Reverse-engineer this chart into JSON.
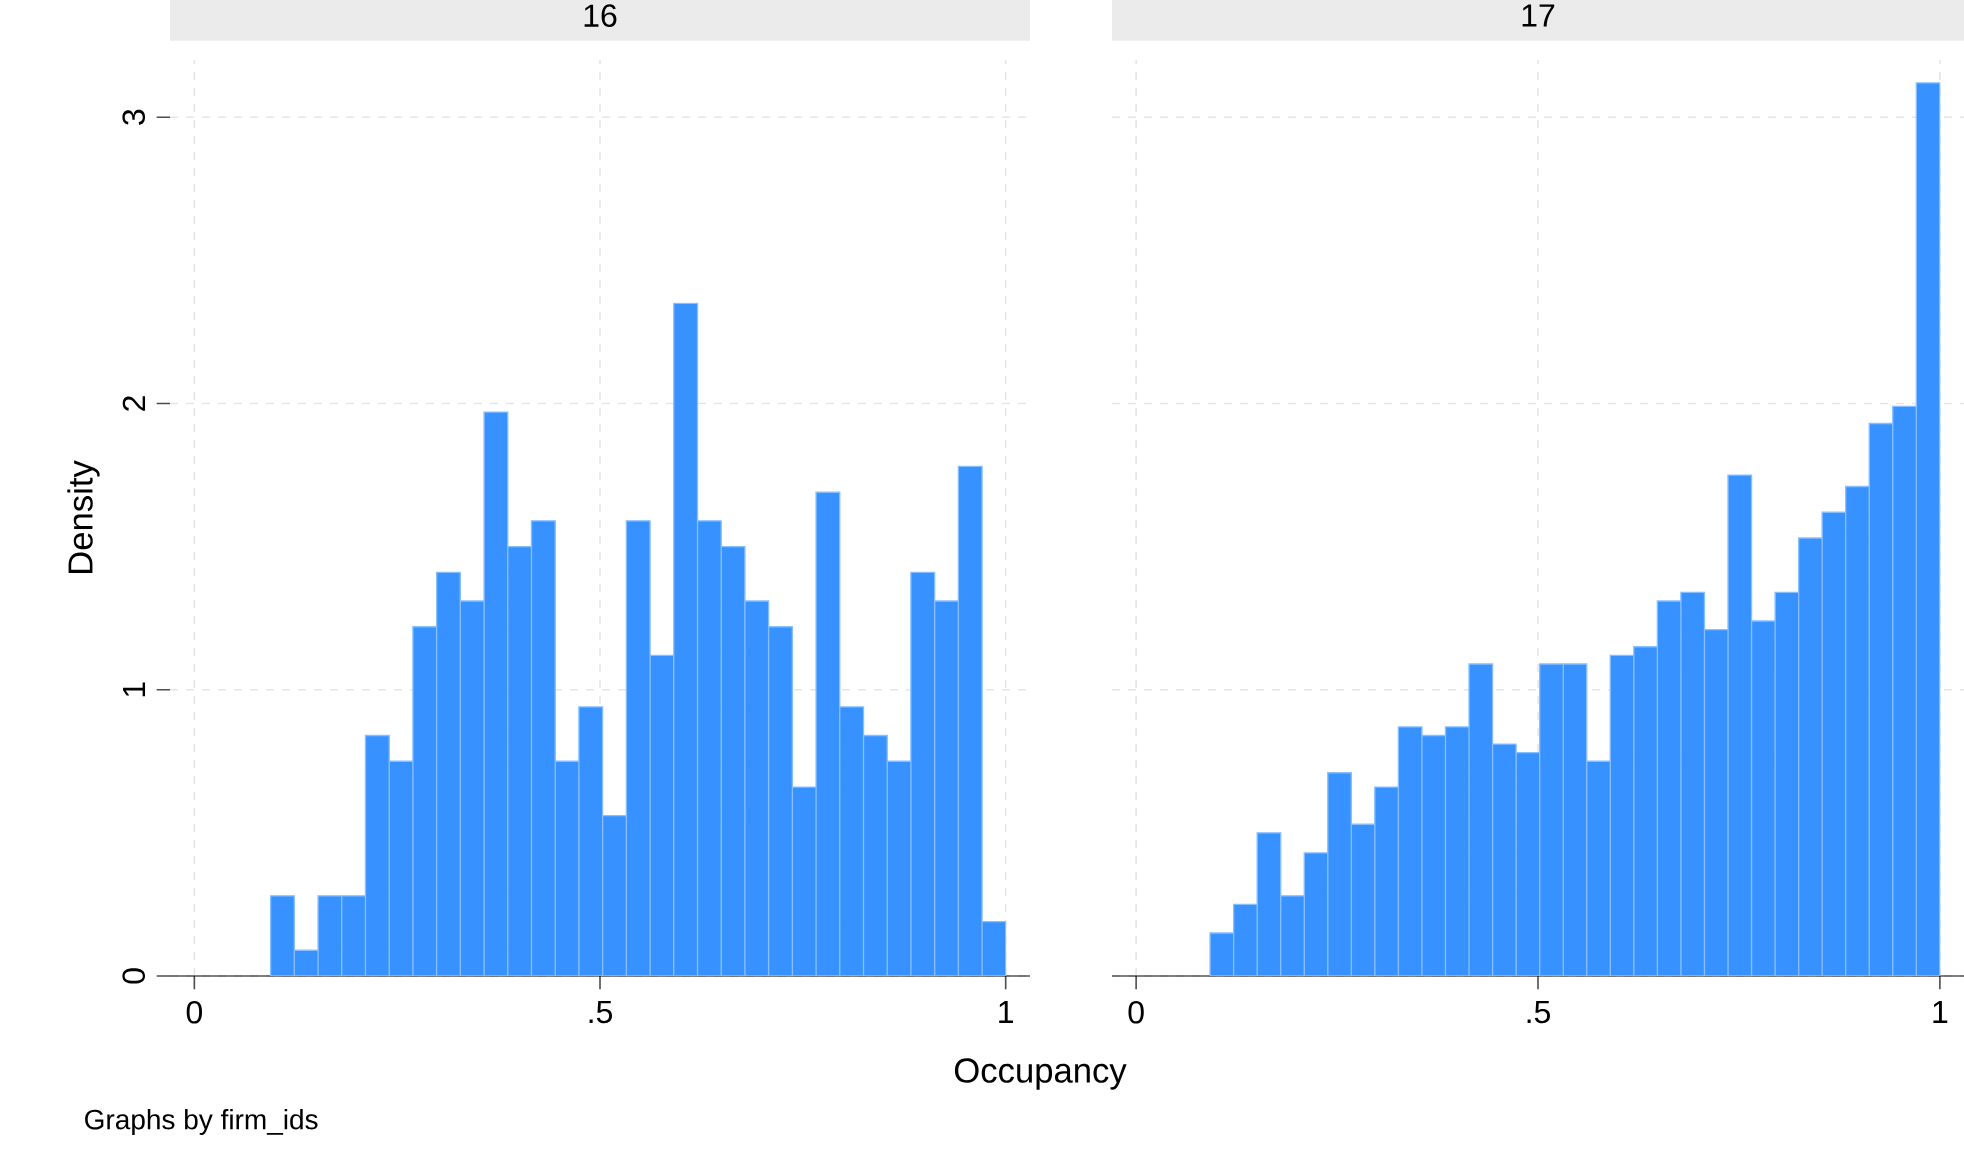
{
  "chart_data": [
    {
      "type": "histogram",
      "title": "16",
      "xlabel": "Occupancy",
      "ylabel": "Density",
      "annotations": [
        "Graphs by firm_ids"
      ],
      "color": "#3792ff",
      "grid": true,
      "bins": [
        0.094,
        0.1232,
        0.1525,
        0.1817,
        0.2109,
        0.2402,
        0.2694,
        0.2986,
        0.3278,
        0.3571,
        0.3863,
        0.4155,
        0.4448,
        0.474,
        0.5032,
        0.5325,
        0.5617,
        0.5909,
        0.6202,
        0.6494,
        0.6786,
        0.7078,
        0.7371,
        0.7663,
        0.7955,
        0.8248,
        0.854,
        0.8832,
        0.9125,
        0.9417,
        0.9709,
        1.0
      ],
      "values": [
        0.28,
        0.09,
        0.28,
        0.28,
        0.84,
        0.75,
        1.22,
        1.41,
        1.31,
        1.97,
        1.5,
        1.59,
        0.75,
        0.94,
        0.56,
        1.59,
        1.12,
        2.35,
        1.59,
        1.5,
        1.31,
        1.22,
        0.66,
        1.69,
        0.94,
        0.84,
        0.75,
        1.41,
        1.31,
        1.78,
        0.19
      ],
      "xlim": [
        -0.03,
        1.03
      ],
      "ylim": [
        0,
        3.2
      ],
      "xticks": [
        0,
        {
          "value": 0.5,
          "label": ".5"
        },
        1
      ],
      "yticks": [
        0,
        1,
        2,
        3
      ]
    },
    {
      "type": "histogram",
      "title": "17",
      "color": "#3792ff",
      "grid": true,
      "tick_labels": "x",
      "bins": [
        0.092,
        0.1213,
        0.1506,
        0.1799,
        0.2092,
        0.2385,
        0.2677,
        0.297,
        0.3263,
        0.3556,
        0.3849,
        0.4142,
        0.4435,
        0.4728,
        0.5021,
        0.5314,
        0.5606,
        0.5899,
        0.6192,
        0.6485,
        0.6778,
        0.7071,
        0.7364,
        0.7657,
        0.795,
        0.8243,
        0.8535,
        0.8828,
        0.9121,
        0.9414,
        0.9707,
        1.0
      ],
      "values": [
        0.15,
        0.25,
        0.5,
        0.28,
        0.43,
        0.71,
        0.53,
        0.66,
        0.87,
        0.84,
        0.87,
        1.09,
        0.81,
        0.78,
        1.09,
        1.09,
        0.75,
        1.12,
        1.15,
        1.31,
        1.34,
        1.21,
        1.75,
        1.24,
        1.34,
        1.53,
        1.62,
        1.71,
        1.93,
        1.99,
        3.12
      ],
      "xlim": [
        -0.03,
        1.03
      ],
      "ylim": [
        0,
        3.2
      ],
      "xticks": [
        0,
        {
          "value": 0.5,
          "label": ".5"
        },
        1
      ],
      "yticks": [
        0,
        1,
        2,
        3
      ]
    }
  ]
}
